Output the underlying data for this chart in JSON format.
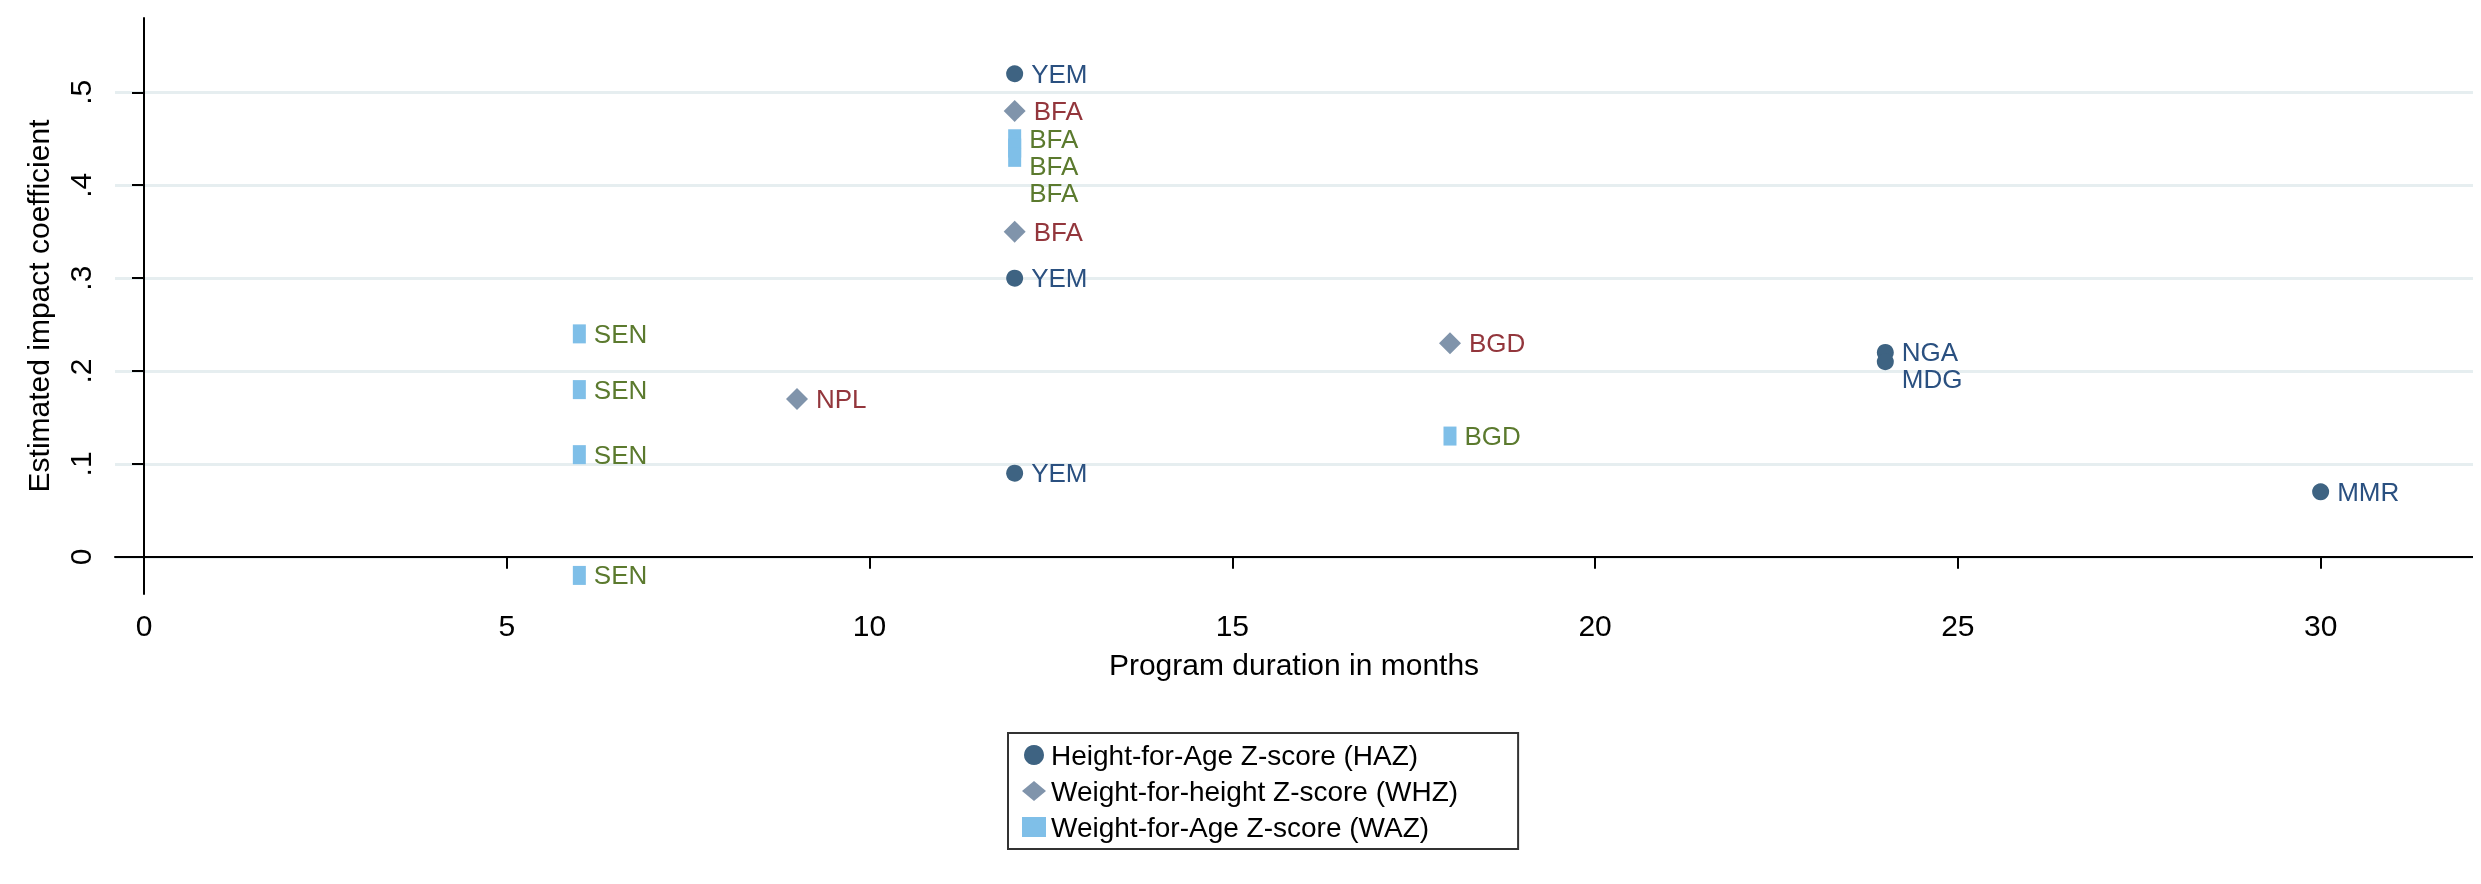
{
  "chart_data": {
    "type": "scatter",
    "xlabel": "Program duration in months",
    "ylabel": "Estimated impact coefficient",
    "xlim": [
      -0.4,
      32.1
    ],
    "xticks": [
      0,
      5,
      10,
      15,
      20,
      25,
      30
    ],
    "ylim": [
      -0.04,
      0.58
    ],
    "yticks": [
      {
        "value": 0,
        "label": "0"
      },
      {
        "value": 0.1,
        "label": ".1"
      },
      {
        "value": 0.2,
        "label": ".2"
      },
      {
        "value": 0.3,
        "label": ".3"
      },
      {
        "value": 0.4,
        "label": ".4"
      },
      {
        "value": 0.5,
        "label": ".5"
      }
    ],
    "grid": "y",
    "legend": "bottom",
    "series": [
      {
        "name": "Height-for-Age Z-score (HAZ)",
        "color": "#3e6382",
        "marker": "circle",
        "x": [
          12,
          12,
          12,
          24,
          24,
          30
        ],
        "values": [
          0.52,
          0.3,
          0.09,
          0.22,
          0.21,
          0.07
        ],
        "value_labels": [
          "YEM",
          "YEM",
          "YEM",
          "NGA",
          "MDG",
          "MMR"
        ]
      },
      {
        "name": "Weight-for-height Z-score (WHZ)",
        "color": "#8094ab",
        "marker": "diamond",
        "x": [
          12,
          12,
          9,
          18
        ],
        "values": [
          0.48,
          0.35,
          0.17,
          0.23
        ],
        "value_labels": [
          "BFA",
          "BFA",
          "NPL",
          "BGD"
        ]
      },
      {
        "name": "Weight-for-Age Z-score (WAZ)",
        "color": "#7fbfe8",
        "marker": "square",
        "x": [
          12,
          12,
          12,
          6,
          6,
          6,
          6,
          18
        ],
        "values": [
          0.45,
          0.44,
          0.43,
          0.24,
          0.18,
          0.11,
          -0.02,
          0.13
        ],
        "value_labels": [
          "BFA",
          "BFA",
          "BFA",
          "SEN",
          "SEN",
          "SEN",
          "SEN",
          "BGD"
        ]
      }
    ]
  }
}
